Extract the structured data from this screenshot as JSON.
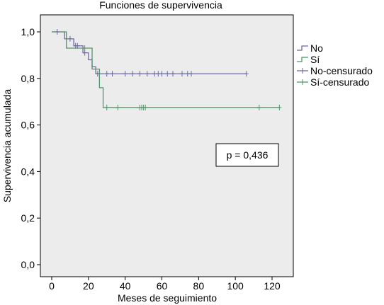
{
  "chart_data": {
    "type": "line",
    "title": "Funciones de supervivencia",
    "xlabel": "Meses de seguimiento",
    "ylabel": "Supervivencia acumulada",
    "xlim": [
      -3,
      127
    ],
    "ylim": [
      0,
      1.02
    ],
    "x_ticks": [
      0,
      20,
      40,
      60,
      80,
      100,
      120
    ],
    "y_ticks": [
      0.0,
      0.2,
      0.4,
      0.6,
      0.8,
      1.0
    ],
    "x_tick_labels": [
      "0",
      "20",
      "40",
      "60",
      "80",
      "100",
      "120"
    ],
    "y_tick_labels": [
      "0,0",
      "0,2",
      "0,4",
      "0,6",
      "0,8",
      "1,0"
    ],
    "plot_background": "#ececec",
    "grid": false,
    "legend_position": "right",
    "annotation": "p = 0,436",
    "series": [
      {
        "name": "No",
        "color": "#6b6b9c",
        "step_x": [
          0,
          7,
          10,
          12,
          14,
          17,
          20,
          22,
          24,
          106
        ],
        "step_y": [
          1.0,
          0.97,
          0.97,
          0.94,
          0.94,
          0.91,
          0.88,
          0.85,
          0.82,
          0.82
        ]
      },
      {
        "name": "Sí",
        "color": "#4f9668",
        "step_x": [
          0,
          8,
          20,
          22,
          26,
          28,
          124
        ],
        "step_y": [
          1.0,
          0.93,
          0.93,
          0.84,
          0.76,
          0.675,
          0.675
        ]
      }
    ],
    "censored": [
      {
        "name": "No-censurado",
        "color": "#6b6b9c",
        "x": [
          3,
          10,
          13,
          14,
          18,
          25,
          30,
          33,
          40,
          44,
          48,
          52,
          56,
          58,
          60,
          63,
          66,
          71,
          74,
          76,
          106
        ],
        "y": [
          1.0,
          0.97,
          0.94,
          0.94,
          0.91,
          0.82,
          0.82,
          0.82,
          0.82,
          0.82,
          0.82,
          0.82,
          0.82,
          0.82,
          0.82,
          0.82,
          0.82,
          0.82,
          0.82,
          0.82,
          0.82
        ]
      },
      {
        "name": "Sí-censurado",
        "color": "#4f9668",
        "x": [
          18,
          30,
          36,
          48,
          49,
          50,
          51,
          113,
          124
        ],
        "y": [
          0.93,
          0.675,
          0.675,
          0.675,
          0.675,
          0.675,
          0.675,
          0.675,
          0.675
        ]
      }
    ]
  }
}
